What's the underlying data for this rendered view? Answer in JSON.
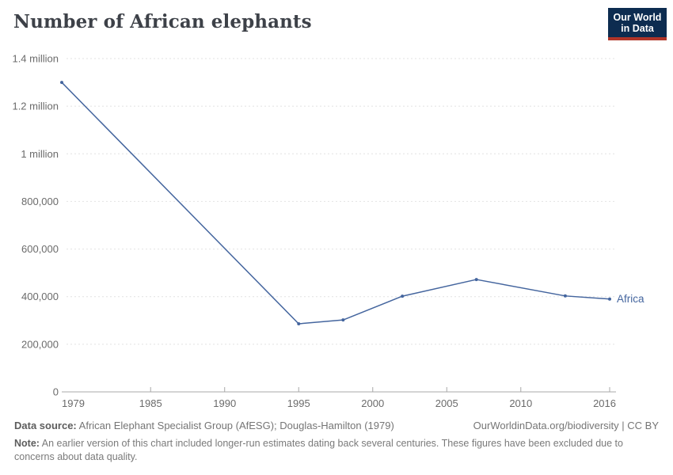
{
  "header": {
    "title": "Number of African elephants"
  },
  "logo": {
    "line1": "Our World",
    "line2": "in Data"
  },
  "chart_data": {
    "type": "line",
    "title": "Number of African elephants",
    "x": [
      1979,
      1995,
      1998,
      2002,
      2007,
      2013,
      2016
    ],
    "series": [
      {
        "name": "Africa",
        "values": [
          1300000,
          286000,
          302000,
          402000,
          472000,
          403000,
          390000
        ],
        "color": "#44659e"
      }
    ],
    "xlabel": "",
    "ylabel": "",
    "xlim": [
      1979,
      2016
    ],
    "ylim": [
      0,
      1400000
    ],
    "grid": "horizontal-dashed",
    "legend_position": "end-of-line",
    "x_ticks": [
      {
        "value": 1979,
        "label": "1979"
      },
      {
        "value": 1985,
        "label": "1985"
      },
      {
        "value": 1990,
        "label": "1990"
      },
      {
        "value": 1995,
        "label": "1995"
      },
      {
        "value": 2000,
        "label": "2000"
      },
      {
        "value": 2005,
        "label": "2005"
      },
      {
        "value": 2010,
        "label": "2010"
      },
      {
        "value": 2016,
        "label": "2016"
      }
    ],
    "y_ticks": [
      {
        "value": 0,
        "label": "0"
      },
      {
        "value": 200000,
        "label": "200,000"
      },
      {
        "value": 400000,
        "label": "400,000"
      },
      {
        "value": 600000,
        "label": "600,000"
      },
      {
        "value": 800000,
        "label": "800,000"
      },
      {
        "value": 1000000,
        "label": "1 million"
      },
      {
        "value": 1200000,
        "label": "1.2 million"
      },
      {
        "value": 1400000,
        "label": "1.4 million"
      }
    ],
    "colors": {
      "series": "#44659e",
      "grid": "#e2e2e2",
      "axis": "#a8a8a8",
      "tick_label": "#6b6b6b"
    }
  },
  "footer": {
    "source_label": "Data source:",
    "source_text": "African Elephant Specialist Group (AfESG); Douglas-Hamilton (1979)",
    "license": "OurWorldinData.org/biodiversity | CC BY",
    "note_label": "Note:",
    "note_text": "An earlier version of this chart included longer-run estimates dating back several centuries. These figures have been excluded due to concerns about data quality."
  }
}
